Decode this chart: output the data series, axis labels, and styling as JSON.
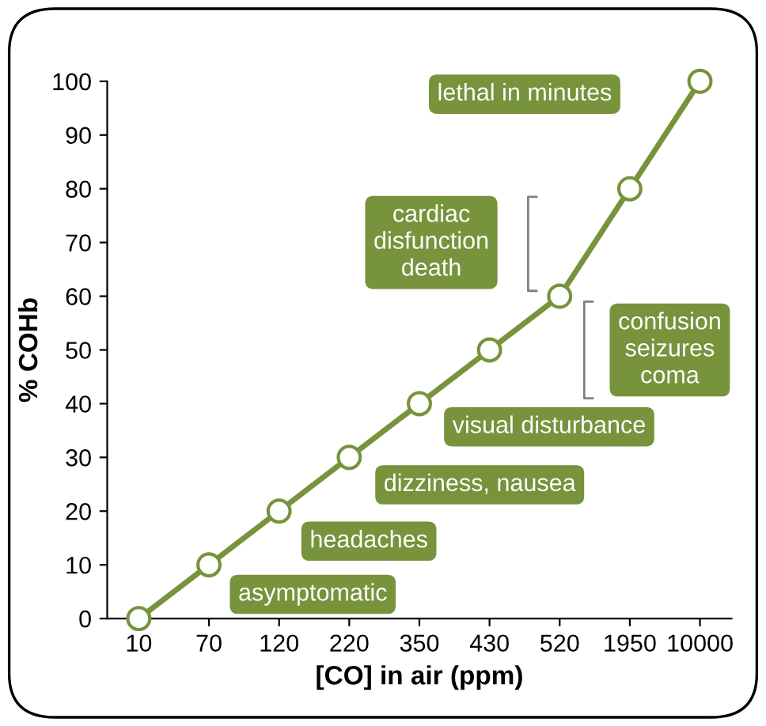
{
  "chart_data": {
    "type": "line",
    "xlabel": "[CO] in air (ppm)",
    "ylabel": "% COHb",
    "categories": [
      "10",
      "70",
      "120",
      "220",
      "350",
      "430",
      "520",
      "1950",
      "10000"
    ],
    "series": [
      {
        "color": "#77933c",
        "values": [
          0,
          10,
          20,
          30,
          40,
          50,
          60,
          80,
          100
        ]
      }
    ],
    "marker": "circle",
    "line_style": "solid",
    "grid": false,
    "legend": false,
    "ylim": [
      0,
      100
    ],
    "yticks": [
      0,
      10,
      20,
      30,
      40,
      50,
      60,
      70,
      80,
      90,
      100
    ],
    "annotations": [
      {
        "text": "asymptomatic",
        "x": "70",
        "y": 10
      },
      {
        "text": "headaches",
        "x": "120",
        "y": 20
      },
      {
        "text": "dizziness, nausea",
        "x": "220",
        "y": 30
      },
      {
        "text": "visual disturbance",
        "x": "350",
        "y": 40
      },
      "confusion\nseizures\ncoma",
      "cardiac\ndisfunction\ndeath",
      "lethal in minutes"
    ]
  }
}
